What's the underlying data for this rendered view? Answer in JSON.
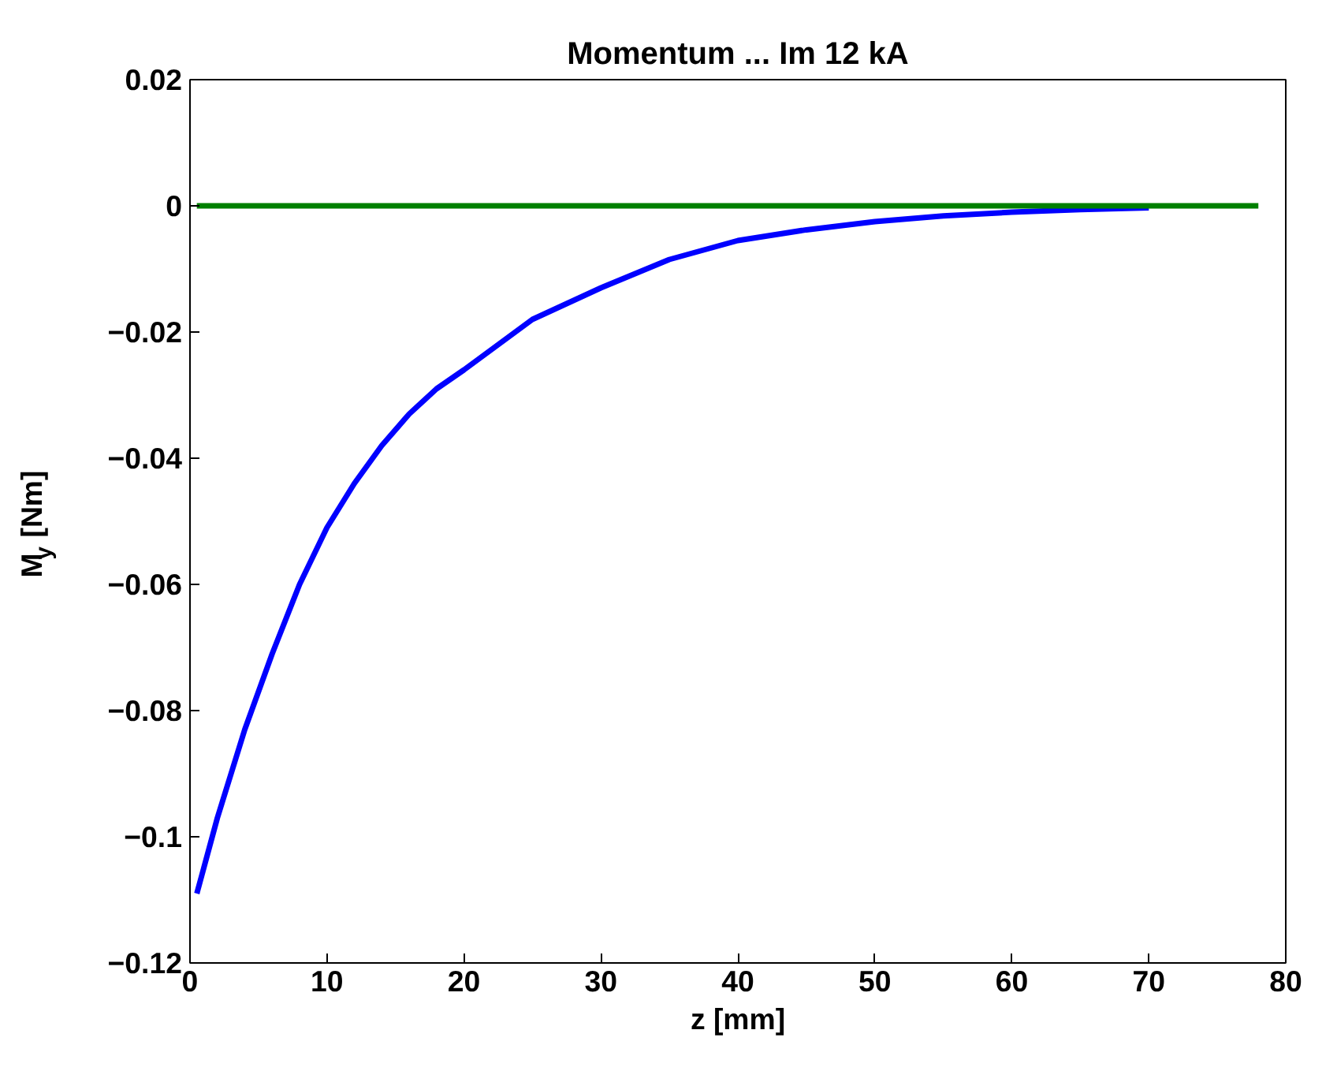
{
  "chart_data": {
    "type": "line",
    "title": "Momentum ... Im 12 kA",
    "xlabel": "z [mm]",
    "ylabel": "M$_{y}$ [Nm]",
    "xlim": [
      0,
      80
    ],
    "ylim": [
      -0.12,
      0.02
    ],
    "xticks": [
      0,
      10,
      20,
      30,
      40,
      50,
      60,
      70,
      80
    ],
    "yticks": [
      {
        "value": -0.12,
        "label": "−0.12"
      },
      {
        "value": -0.1,
        "label": "−0.1"
      },
      {
        "value": -0.08,
        "label": "−0.08"
      },
      {
        "value": -0.06,
        "label": "−0.06"
      },
      {
        "value": -0.04,
        "label": "−0.04"
      },
      {
        "value": -0.02,
        "label": "−0.02"
      },
      0,
      0.02
    ],
    "grid": false,
    "marker": "none",
    "line_style": "solid",
    "series": [
      {
        "color": "#0000ff",
        "x": [
          0.5,
          2,
          4,
          6,
          8,
          10,
          12,
          14,
          16,
          18,
          20,
          25,
          30,
          35,
          40,
          45,
          50,
          55,
          60,
          65,
          70
        ],
        "values": [
          -0.109,
          -0.097,
          -0.083,
          -0.071,
          -0.06,
          -0.051,
          -0.044,
          -0.038,
          -0.033,
          -0.029,
          -0.026,
          -0.018,
          -0.013,
          -0.0085,
          -0.0055,
          -0.0038,
          -0.0025,
          -0.0016,
          -0.001,
          -0.0006,
          -0.0003
        ]
      },
      {
        "color": "#008000",
        "x": [
          0.5,
          78
        ],
        "values": [
          0,
          0
        ]
      }
    ]
  }
}
